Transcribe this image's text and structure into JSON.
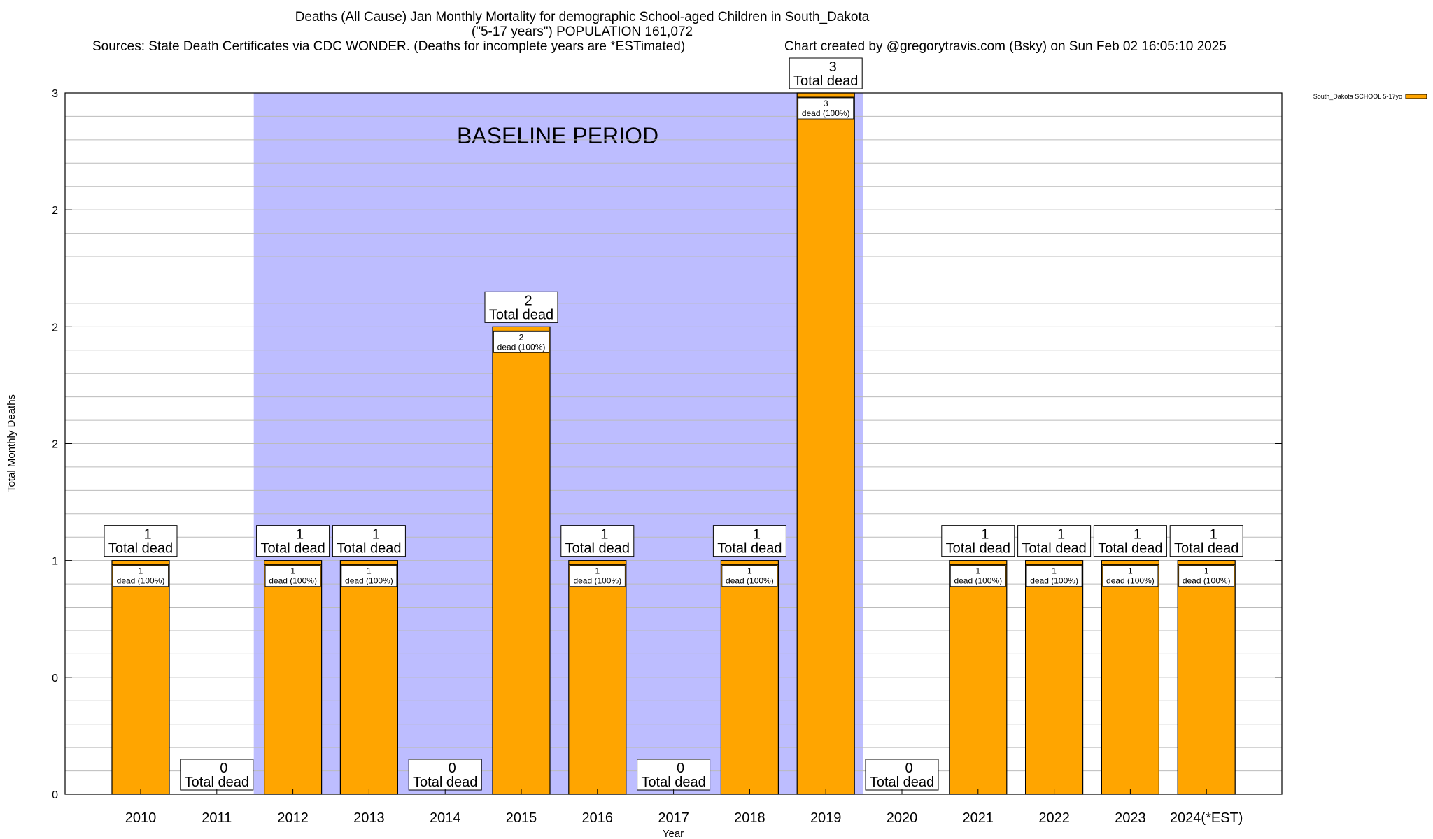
{
  "chart_data": {
    "type": "bar",
    "title_line1": "Deaths (All Cause) Jan Monthly Mortality for demographic School-aged Children in South_Dakota",
    "title_line2": "(\"5-17 years\") POPULATION 161,072",
    "sources": "Sources: State Death Certificates via CDC WONDER. (Deaths for incomplete years are *ESTimated)",
    "credit": "Chart created by @gregorytravis.com (Bsky) on Sun Feb 02 16:05:10 2025",
    "xlabel": "Year",
    "ylabel": "Total Monthly Deaths",
    "baseline_label": "BASELINE PERIOD",
    "baseline_range": [
      "2012",
      "2019"
    ],
    "legend": {
      "label": "South_Dakota SCHOOL 5-17yo",
      "position": "top-right",
      "color": "#FFA500"
    },
    "ylim": [
      0,
      3
    ],
    "y_ticks": [
      {
        "value": 0,
        "label": "0"
      },
      {
        "value": 0.5,
        "label": "0"
      },
      {
        "value": 1,
        "label": "1"
      },
      {
        "value": 1.5,
        "label": "2"
      },
      {
        "value": 2,
        "label": "2"
      },
      {
        "value": 2.5,
        "label": "2"
      },
      {
        "value": 3,
        "label": "3"
      }
    ],
    "categories": [
      "2010",
      "2011",
      "2012",
      "2013",
      "2014",
      "2015",
      "2016",
      "2017",
      "2018",
      "2019",
      "2020",
      "2021",
      "2022",
      "2023",
      "2024(*EST)"
    ],
    "values": [
      1,
      0,
      1,
      1,
      0,
      2,
      1,
      0,
      1,
      3,
      0,
      1,
      1,
      1,
      1
    ],
    "total_label_text": "Total dead",
    "inner_label_text": "dead (100%)",
    "colors": {
      "bar": "#FFA500",
      "baseline": "#BDBDFF",
      "grid": "#BBBBBB"
    }
  }
}
